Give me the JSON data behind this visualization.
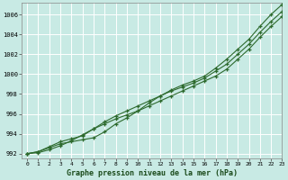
{
  "xlabel": "Graphe pression niveau de la mer (hPa)",
  "background_color": "#c8eae4",
  "plot_bg_color": "#c8eae4",
  "grid_color": "#ffffff",
  "line_color": "#2d6a2d",
  "ylim": [
    991.5,
    1007.2
  ],
  "xlim": [
    -0.5,
    23
  ],
  "yticks": [
    992,
    994,
    996,
    998,
    1000,
    1002,
    1004,
    1006
  ],
  "xticks": [
    0,
    1,
    2,
    3,
    4,
    5,
    6,
    7,
    8,
    9,
    10,
    11,
    12,
    13,
    14,
    15,
    16,
    17,
    18,
    19,
    20,
    21,
    22,
    23
  ],
  "series": [
    [
      992.0,
      992.2,
      992.6,
      993.0,
      993.2,
      993.4,
      993.6,
      994.2,
      995.0,
      995.6,
      996.3,
      997.1,
      997.8,
      998.4,
      998.9,
      999.3,
      999.8,
      1000.6,
      1001.5,
      1002.5,
      1003.5,
      1004.8,
      1006.0,
      1007.0
    ],
    [
      992.0,
      992.2,
      992.7,
      993.2,
      993.5,
      993.8,
      994.5,
      995.2,
      995.8,
      996.3,
      996.8,
      997.3,
      997.8,
      998.3,
      998.7,
      999.1,
      999.6,
      1000.3,
      1001.0,
      1002.0,
      1003.0,
      1004.2,
      1005.3,
      1006.3
    ],
    [
      992.0,
      992.1,
      992.4,
      992.8,
      993.3,
      993.9,
      994.5,
      995.0,
      995.5,
      995.9,
      996.3,
      996.8,
      997.3,
      997.8,
      998.3,
      998.8,
      999.3,
      999.8,
      1000.5,
      1001.5,
      1002.5,
      1003.7,
      1004.8,
      1005.8
    ]
  ]
}
